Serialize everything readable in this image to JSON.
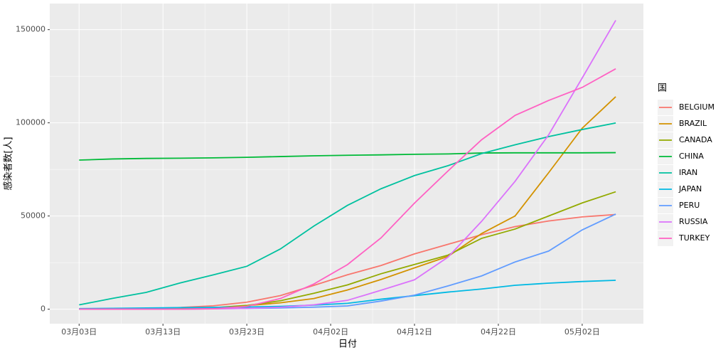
{
  "chart_data": {
    "type": "line",
    "x_label": "日付",
    "y_label": "感染者数[人]",
    "legend_title": "国",
    "x": [
      0,
      4,
      8,
      12,
      16,
      20,
      24,
      28,
      32,
      36,
      40,
      44,
      48,
      52,
      56,
      60,
      64
    ],
    "xlim": [
      -3.5,
      67.3
    ],
    "xticks": [
      {
        "value": 0,
        "label": "03月03日"
      },
      {
        "value": 10,
        "label": "03月13日"
      },
      {
        "value": 20,
        "label": "03月23日"
      },
      {
        "value": 30,
        "label": "04月02日"
      },
      {
        "value": 40,
        "label": "04月12日"
      },
      {
        "value": 50,
        "label": "04月22日"
      },
      {
        "value": 60,
        "label": "05月02日"
      }
    ],
    "ylim": [
      -7800,
      164000
    ],
    "yticks": [
      0,
      50000,
      100000,
      150000
    ],
    "grid": true,
    "legend": "right",
    "series": [
      {
        "name": "BELGIUM",
        "color": "#F8766D",
        "values": [
          13,
          169,
          314,
          886,
          1795,
          3743,
          7284,
          12775,
          18431,
          23403,
          29647,
          34809,
          39983,
          44293,
          47334,
          49517,
          50781
        ]
      },
      {
        "name": "BRAZIL",
        "color": "#D39200",
        "values": [
          2,
          19,
          52,
          200,
          621,
          1891,
          3417,
          5717,
          10278,
          15927,
          22169,
          28320,
          40581,
          50036,
          73235,
          97100,
          114000
        ]
      },
      {
        "name": "CANADA",
        "color": "#93AA00",
        "values": [
          30,
          60,
          100,
          250,
          800,
          2000,
          4500,
          8500,
          13000,
          19000,
          24000,
          29000,
          38000,
          43000,
          50000,
          57000,
          63000
        ]
      },
      {
        "name": "CHINA",
        "color": "#00BA38",
        "values": [
          80000,
          80600,
          80900,
          81000,
          81200,
          81500,
          81900,
          82300,
          82600,
          82800,
          83100,
          83300,
          83800,
          83900,
          83900,
          83900,
          84000
        ]
      },
      {
        "name": "IRAN",
        "color": "#00C19F",
        "values": [
          2300,
          5800,
          9000,
          14000,
          18400,
          23000,
          32300,
          44600,
          55700,
          64600,
          71700,
          77000,
          83500,
          88200,
          92600,
          96400,
          99900
        ]
      },
      {
        "name": "JAPAN",
        "color": "#00B9E3",
        "values": [
          293,
          455,
          639,
          839,
          950,
          1140,
          1499,
          2178,
          3139,
          5347,
          7255,
          9167,
          10797,
          12829,
          13965,
          14839,
          15500
        ]
      },
      {
        "name": "PERU",
        "color": "#619CFF",
        "values": [
          0,
          6,
          11,
          38,
          234,
          395,
          635,
          1065,
          1746,
          4342,
          7519,
          12491,
          17837,
          25331,
          31190,
          42534,
          51000
        ]
      },
      {
        "name": "RUSSIA",
        "color": "#DB72FB",
        "values": [
          3,
          10,
          28,
          63,
          199,
          438,
          1036,
          2337,
          4731,
          10131,
          15770,
          27938,
          47121,
          68622,
          93558,
          124054,
          155000
        ]
      },
      {
        "name": "TURKEY",
        "color": "#FF61C3",
        "values": [
          0,
          0,
          0,
          5,
          190,
          1500,
          5700,
          13500,
          23900,
          38200,
          56900,
          74200,
          90900,
          104000,
          112000,
          119000,
          129000
        ]
      }
    ]
  }
}
